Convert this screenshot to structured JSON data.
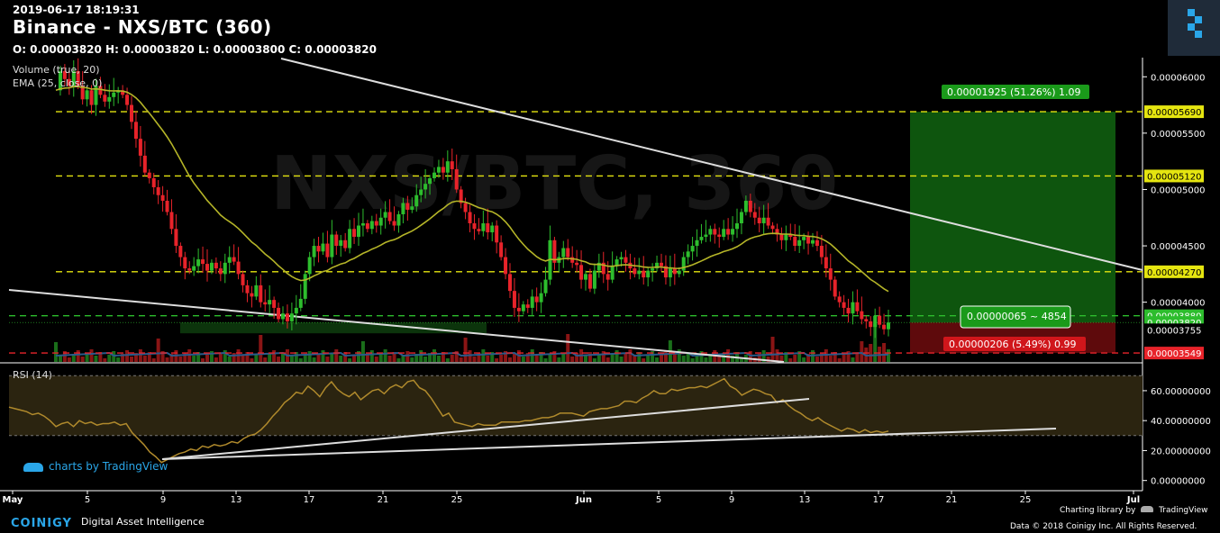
{
  "header": {
    "timestamp": "2019-06-17 18:19:31",
    "title": "Binance - NXS/BTC (360)",
    "ohlc": "O: 0.00003820 H: 0.00003820 L: 0.00003800 C: 0.00003820",
    "watermark": "NXS/BTC, 360"
  },
  "legend": {
    "volume": "Volume (true, 20)",
    "ema": "EMA (25, close, 0)",
    "rsi": "RSI (14)"
  },
  "tv_badge": "charts by TradingView",
  "footer": {
    "brand": "COINIGY",
    "tagline": "Digital Asset Intelligence",
    "charting": "Charting library by",
    "tv": "TradingView",
    "copyright": "Data © 2018 Coinigy Inc. All Rights Reserved."
  },
  "colors": {
    "up": "#2dbd2d",
    "down": "#e8232a",
    "ema": "#b5b528",
    "rsi": "#b08a2c",
    "level": "#e5e510",
    "target": "#1a9a1a",
    "stop": "#d0161b"
  },
  "chart_data": {
    "type": "candlestick",
    "price_axis": {
      "ticks": [
        "0.00006000",
        "0.00005500",
        "0.00005000",
        "0.00004500",
        "0.00004000"
      ],
      "range": [
        3.47e-05,
        6.17e-05
      ]
    },
    "x_axis": {
      "ticks": [
        "May",
        "5",
        "9",
        "13",
        "17",
        "21",
        "25",
        "Jun",
        "5",
        "9",
        "13",
        "17",
        "21",
        "25",
        "Jul"
      ]
    },
    "levels": [
      {
        "label": "0.00005690",
        "value": 5.69e-05,
        "color": "#e5e510"
      },
      {
        "label": "0.00005120",
        "value": 5.12e-05,
        "color": "#e5e510"
      },
      {
        "label": "0.00004270",
        "value": 4.27e-05,
        "color": "#e5e510"
      },
      {
        "label": "0.00003880",
        "value": 3.88e-05,
        "color": "#2dbd2d"
      },
      {
        "label": "0.00003549",
        "value": 3.549e-05,
        "color": "#e8232a"
      }
    ],
    "current_price_label": "0.00003820",
    "last_close_label": "0.00003755",
    "position": {
      "target_label": "0.00001925 (51.26%) 1.09",
      "middle_label": "0.00000065 ~ 4854",
      "stop_label": "0.00000206 (5.49%) 0.99"
    },
    "rsi_axis": {
      "ticks": [
        "60.00000000",
        "40.00000000",
        "20.00000000",
        "0.00000000"
      ],
      "range": [
        -5,
        78
      ],
      "bands": [
        30,
        70
      ]
    },
    "closes": [
      58.8,
      60.5,
      59.8,
      59.2,
      60.5,
      59.2,
      58.0,
      58.8,
      57.5,
      59.2,
      58.4,
      57.8,
      58.2,
      58.6,
      58.8,
      58.4,
      57.5,
      56.0,
      54.5,
      53.0,
      51.5,
      51.0,
      50.2,
      49.5,
      49.0,
      48.0,
      46.5,
      45.0,
      44.0,
      43.0,
      42.8,
      43.2,
      43.8,
      43.4,
      42.8,
      43.5,
      43.0,
      42.5,
      43.5,
      44.0,
      43.6,
      42.5,
      41.5,
      40.8,
      40.5,
      41.5,
      40.0,
      39.8,
      40.2,
      39.5,
      38.5,
      39.0,
      38.3,
      39.0,
      39.5,
      40.3,
      42.5,
      44.0,
      45.0,
      44.5,
      45.2,
      44.0,
      46.0,
      45.0,
      45.5,
      44.8,
      46.5,
      45.8,
      46.8,
      47.0,
      46.5,
      47.2,
      46.8,
      47.5,
      48.0,
      47.2,
      46.8,
      47.8,
      48.8,
      48.2,
      48.5,
      49.5,
      50.0,
      50.5,
      51.0,
      51.5,
      52.0,
      51.5,
      52.5,
      51.8,
      50.0,
      48.8,
      48.0,
      47.0,
      46.5,
      46.3,
      47.0,
      46.2,
      46.8,
      45.3,
      44.0,
      42.5,
      41.0,
      39.5,
      39.2,
      39.8,
      39.5,
      40.5,
      40.0,
      40.8,
      42.0,
      45.5,
      43.5,
      44.0,
      44.8,
      44.0,
      43.5,
      43.3,
      42.0,
      42.5,
      41.2,
      42.8,
      43.5,
      42.5,
      42.0,
      43.2,
      43.8,
      44.0,
      43.5,
      43.0,
      42.5,
      42.8,
      42.2,
      42.8,
      43.0,
      43.5,
      43.2,
      42.2,
      43.0,
      42.5,
      42.8,
      44.0,
      44.5,
      45.0,
      45.5,
      45.8,
      46.0,
      46.5,
      46.0,
      45.8,
      46.5,
      46.0,
      46.5,
      47.0,
      48.0,
      49.0,
      48.0,
      47.5,
      47.0,
      47.5,
      46.8,
      46.5,
      46.0,
      45.5,
      46.0,
      45.8,
      45.0,
      45.5,
      45.8,
      45.2,
      45.5,
      45.0,
      44.0,
      43.0,
      42.0,
      40.5,
      40.0,
      39.5,
      39.0,
      40.0,
      39.2,
      38.5,
      38.3,
      37.8,
      38.8,
      38.0,
      37.6,
      38.2
    ],
    "rsi_values": [
      49,
      48,
      47,
      46,
      44,
      45,
      43,
      40,
      36,
      38,
      39,
      36,
      40,
      38,
      39,
      37,
      38,
      38,
      39,
      37,
      38,
      32,
      28,
      24,
      19,
      16,
      12,
      14,
      16,
      18,
      19,
      21,
      20,
      23,
      22,
      24,
      23,
      24,
      26,
      25,
      28,
      30,
      31,
      34,
      38,
      43,
      47,
      52,
      55,
      59,
      58,
      63,
      60,
      56,
      62,
      66,
      61,
      58,
      56,
      59,
      54,
      57,
      60,
      61,
      58,
      62,
      64,
      62,
      66,
      67,
      62,
      60,
      55,
      49,
      43,
      45,
      39,
      38,
      37,
      36,
      38,
      37,
      37,
      37,
      39,
      39,
      39,
      39,
      40,
      40,
      41,
      42,
      42,
      43,
      45,
      45,
      45,
      44,
      43,
      46,
      47,
      48,
      48,
      49,
      50,
      53,
      53,
      52,
      55,
      57,
      60,
      58,
      58,
      61,
      60,
      61,
      62,
      62,
      63,
      62,
      64,
      66,
      68,
      63,
      61,
      57,
      59,
      61,
      60,
      58,
      57,
      52,
      54,
      50,
      47,
      45,
      42,
      40,
      42,
      39,
      37,
      35,
      33,
      35,
      34,
      32,
      34,
      32,
      33,
      32,
      33
    ]
  }
}
